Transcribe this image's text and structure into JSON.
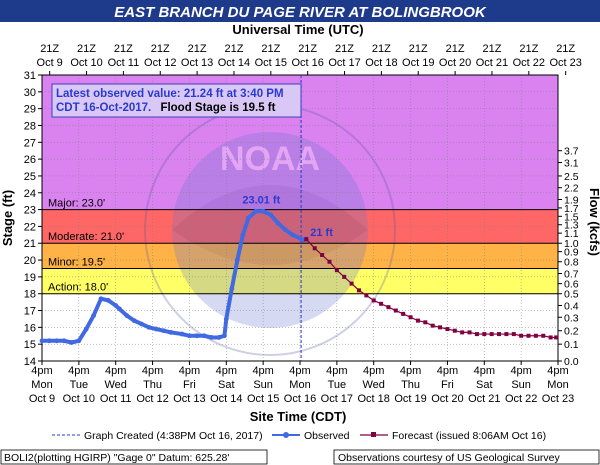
{
  "title": "EAST BRANCH DU PAGE RIVER AT BOLINGBROOK",
  "top_axis_title": "Universal Time (UTC)",
  "bottom_axis_title": "Site Time (CDT)",
  "left_axis_title": "Stage (ft)",
  "right_axis_title": "Flow (kcfs)",
  "info_box": {
    "line1": "Latest observed value: 21.24 ft at 3:40 PM",
    "line2_prefix": "CDT 16-Oct-2017.",
    "line2_suffix": "Flood Stage is 19.5 ft"
  },
  "watermark": "NATIONAL OCEANIC AND ATMOSPHERIC ADMINISTRATION · U.S. DEPARTMENT OF COMMERCE · NOAA",
  "legend": {
    "created": "Graph Created (4:38PM Oct 16, 2017)",
    "observed": "Observed",
    "forecast": "Forecast (issued 8:06AM Oct 16)"
  },
  "footer_left": "BOLI2(plotting HGIRP) \"Gage 0\" Datum: 625.28'",
  "footer_right": "Observations courtesy of US Geological Survey",
  "colors": {
    "major": "#ee82ee",
    "moderate": "#ff6666",
    "minor": "#ffb347",
    "action": "#ffff66",
    "above_major": "#d982f0",
    "observed": "#4169e1",
    "forecast": "#800040",
    "title_bg": "#1e3a8a"
  },
  "chart_data": {
    "type": "line",
    "title": "EAST BRANCH DU PAGE RIVER AT BOLINGBROOK",
    "xlabel": "Site Time (CDT)",
    "x2label": "Universal Time (UTC)",
    "ylabel": "Stage (ft)",
    "y2label": "Flow (kcfs)",
    "ylim": [
      14,
      31
    ],
    "xlim": [
      "2017-10-09 16:00",
      "2017-10-23 16:00"
    ],
    "grid": true,
    "x_ticks_bottom": [
      {
        "l1": "4pm",
        "l2": "Mon",
        "l3": "Oct 9"
      },
      {
        "l1": "4pm",
        "l2": "Tue",
        "l3": "Oct 10"
      },
      {
        "l1": "4pm",
        "l2": "Wed",
        "l3": "Oct 11"
      },
      {
        "l1": "4pm",
        "l2": "Thu",
        "l3": "Oct 12"
      },
      {
        "l1": "4pm",
        "l2": "Fri",
        "l3": "Oct 13"
      },
      {
        "l1": "4pm",
        "l2": "Sat",
        "l3": "Oct 14"
      },
      {
        "l1": "4pm",
        "l2": "Sun",
        "l3": "Oct 15"
      },
      {
        "l1": "4pm",
        "l2": "Mon",
        "l3": "Oct 16"
      },
      {
        "l1": "4pm",
        "l2": "Tue",
        "l3": "Oct 17"
      },
      {
        "l1": "4pm",
        "l2": "Wed",
        "l3": "Oct 18"
      },
      {
        "l1": "4pm",
        "l2": "Thu",
        "l3": "Oct 19"
      },
      {
        "l1": "4pm",
        "l2": "Fri",
        "l3": "Oct 20"
      },
      {
        "l1": "4pm",
        "l2": "Sat",
        "l3": "Oct 21"
      },
      {
        "l1": "4pm",
        "l2": "Sun",
        "l3": "Oct 22"
      },
      {
        "l1": "4pm",
        "l2": "Mon",
        "l3": "Oct 23"
      }
    ],
    "x_ticks_top": [
      {
        "l1": "21Z",
        "l2": "Oct 9"
      },
      {
        "l1": "21Z",
        "l2": "Oct 10"
      },
      {
        "l1": "21Z",
        "l2": "Oct 11"
      },
      {
        "l1": "21Z",
        "l2": "Oct 12"
      },
      {
        "l1": "21Z",
        "l2": "Oct 13"
      },
      {
        "l1": "21Z",
        "l2": "Oct 14"
      },
      {
        "l1": "21Z",
        "l2": "Oct 15"
      },
      {
        "l1": "21Z",
        "l2": "Oct 16"
      },
      {
        "l1": "21Z",
        "l2": "Oct 17"
      },
      {
        "l1": "21Z",
        "l2": "Oct 18"
      },
      {
        "l1": "21Z",
        "l2": "Oct 19"
      },
      {
        "l1": "21Z",
        "l2": "Oct 20"
      },
      {
        "l1": "21Z",
        "l2": "Oct 21"
      },
      {
        "l1": "21Z",
        "l2": "Oct 22"
      },
      {
        "l1": "21Z",
        "l2": "Oct 23"
      }
    ],
    "y_ticks": [
      14,
      15,
      16,
      17,
      18,
      19,
      20,
      21,
      22,
      23,
      24,
      25,
      26,
      27,
      28,
      29,
      30,
      31
    ],
    "flow_ticks": [
      {
        "stage": 14.0,
        "label": "0.0"
      },
      {
        "stage": 15.0,
        "label": "0.1"
      },
      {
        "stage": 15.8,
        "label": "0.2"
      },
      {
        "stage": 16.6,
        "label": "0.3"
      },
      {
        "stage": 17.3,
        "label": "0.4"
      },
      {
        "stage": 18.0,
        "label": "0.5"
      },
      {
        "stage": 18.6,
        "label": "0.6"
      },
      {
        "stage": 19.2,
        "label": "0.7"
      },
      {
        "stage": 19.9,
        "label": "0.8"
      },
      {
        "stage": 20.5,
        "label": "0.9"
      },
      {
        "stage": 21.0,
        "label": "1.0"
      },
      {
        "stage": 21.6,
        "label": "1.1"
      },
      {
        "stage": 22.1,
        "label": "1.3"
      },
      {
        "stage": 22.6,
        "label": "1.5"
      },
      {
        "stage": 23.1,
        "label": "1.7"
      },
      {
        "stage": 23.6,
        "label": "1.9"
      },
      {
        "stage": 24.3,
        "label": "2.2"
      },
      {
        "stage": 25.0,
        "label": "2.5"
      },
      {
        "stage": 25.8,
        "label": "3.1"
      },
      {
        "stage": 26.5,
        "label": "3.7"
      }
    ],
    "flood_categories": [
      {
        "name": "Major",
        "label": "Major: 23.0'",
        "stage": 23.0
      },
      {
        "name": "Moderate",
        "label": "Moderate: 21.0'",
        "stage": 21.0
      },
      {
        "name": "Minor",
        "label": "Minor: 19.5'",
        "stage": 19.5
      },
      {
        "name": "Action",
        "label": "Action: 18.0'",
        "stage": 18.0
      }
    ],
    "series": [
      {
        "name": "Observed",
        "x": [
          0,
          0.2,
          0.4,
          0.6,
          0.8,
          1.0,
          1.2,
          1.4,
          1.6,
          1.8,
          2.0,
          2.1,
          2.3,
          2.5,
          2.7,
          2.9,
          3.1,
          3.3,
          3.5,
          3.8,
          4.0,
          4.2,
          4.4,
          4.6,
          4.8,
          4.95,
          5.0,
          5.15,
          5.3,
          5.45,
          5.6,
          5.8,
          6.0,
          6.2,
          6.4,
          6.6,
          6.8,
          7.0,
          7.1,
          7.17
        ],
        "y": [
          15.2,
          15.2,
          15.2,
          15.2,
          15.1,
          15.2,
          15.9,
          16.7,
          17.7,
          17.6,
          17.3,
          17.1,
          16.7,
          16.4,
          16.2,
          16.0,
          15.9,
          15.8,
          15.7,
          15.6,
          15.5,
          15.5,
          15.5,
          15.4,
          15.4,
          15.5,
          16.5,
          18.3,
          20.0,
          21.5,
          22.5,
          22.9,
          22.9,
          22.7,
          22.2,
          21.8,
          21.5,
          21.3,
          21.2,
          21.24
        ]
      },
      {
        "name": "Forecast",
        "x": [
          7.17,
          7.4,
          7.6,
          7.8,
          8.0,
          8.2,
          8.4,
          8.6,
          8.8,
          9.0,
          9.2,
          9.4,
          9.6,
          9.8,
          10.0,
          10.2,
          10.4,
          10.6,
          10.8,
          11.0,
          11.2,
          11.4,
          11.6,
          11.8,
          12.0,
          12.2,
          12.4,
          12.6,
          12.8,
          13.0,
          13.2,
          13.4,
          13.6,
          13.8,
          13.95
        ],
        "y": [
          21.24,
          20.7,
          20.3,
          19.9,
          19.4,
          19.0,
          18.6,
          18.2,
          17.9,
          17.6,
          17.4,
          17.2,
          17.0,
          16.8,
          16.6,
          16.4,
          16.3,
          16.1,
          16.0,
          15.9,
          15.8,
          15.7,
          15.7,
          15.6,
          15.6,
          15.6,
          15.6,
          15.6,
          15.6,
          15.5,
          15.5,
          15.5,
          15.5,
          15.4,
          15.4
        ]
      }
    ],
    "annotations": [
      {
        "text": "23.01 ft",
        "x": 5.95,
        "y": 23.01
      },
      {
        "text": "21 ft",
        "x": 7.17,
        "y": 21.24
      }
    ],
    "created_line_x": 7.03
  }
}
